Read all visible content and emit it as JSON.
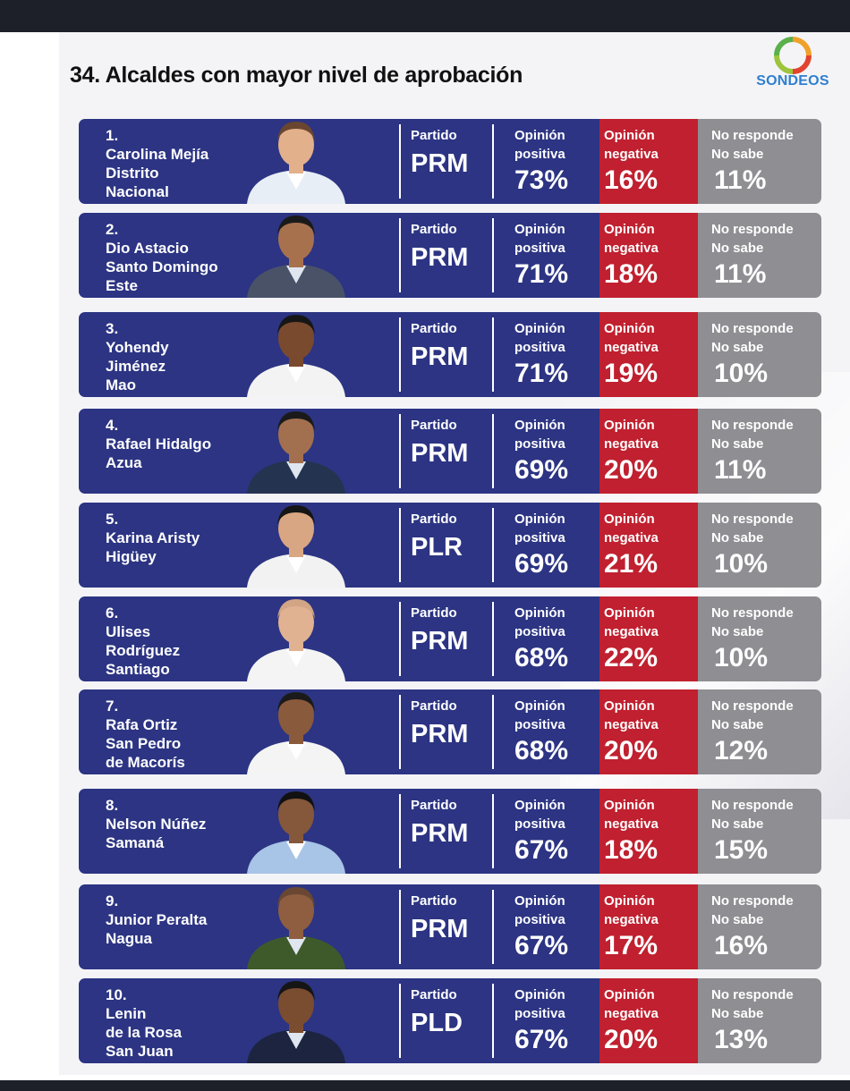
{
  "title": "34. Alcaldes con mayor nivel de aprobación",
  "logo_text": "SONDEOS",
  "labels": {
    "party": "Partido",
    "positive_line1": "Opinión",
    "positive_line2": "positiva",
    "negative_line1": "Opinión",
    "negative_line2": "negativa",
    "noanswer_line1": "No responde",
    "noanswer_line2": "No sabe"
  },
  "colors": {
    "row_blue": "#2c3483",
    "negative_red": "#c0202f",
    "noanswer_gray": "#8e8e93",
    "logo_blue": "#2f7fd0"
  },
  "chart_data": {
    "type": "table",
    "title": "34. Alcaldes con mayor nivel de aprobación",
    "columns": [
      "Partido",
      "Opinión positiva",
      "Opinión negativa",
      "No responde No sabe"
    ],
    "rows": [
      {
        "rank": "1.",
        "name_lines": [
          "Carolina Mejía",
          "Distrito",
          "Nacional"
        ],
        "party": "PRM",
        "positive": "73%",
        "negative": "16%",
        "no_answer": "11%",
        "suit": "light",
        "hair": "#6a4630",
        "skin": "#e3b08c"
      },
      {
        "rank": "2.",
        "name_lines": [
          "Dio Astacio",
          "Santo Domingo",
          "Este"
        ],
        "party": "PRM",
        "positive": "71%",
        "negative": "18%",
        "no_answer": "11%",
        "suit": "#4a5268",
        "hair": "#1a1a1a",
        "skin": "#a8714e"
      },
      {
        "rank": "3.",
        "name_lines": [
          "Yohendy",
          "Jiménez",
          "Mao"
        ],
        "party": "PRM",
        "positive": "71%",
        "negative": "19%",
        "no_answer": "10%",
        "suit": "#f3f3f3",
        "hair": "#161616",
        "skin": "#7a4a2e"
      },
      {
        "rank": "4.",
        "name_lines": [
          "Rafael Hidalgo",
          "Azua"
        ],
        "party": "PRM",
        "positive": "69%",
        "negative": "20%",
        "no_answer": "11%",
        "suit": "#243450",
        "hair": "#1a1a1a",
        "skin": "#a3704f"
      },
      {
        "rank": "5.",
        "name_lines": [
          "Karina Aristy",
          "Higüey"
        ],
        "party": "PLR",
        "positive": "69%",
        "negative": "21%",
        "no_answer": "10%",
        "suit": "#f2f2f2",
        "hair": "#151515",
        "skin": "#d9a683"
      },
      {
        "rank": "6.",
        "name_lines": [
          "Ulises",
          "Rodríguez",
          "Santiago"
        ],
        "party": "PRM",
        "positive": "68%",
        "negative": "22%",
        "no_answer": "10%",
        "suit": "#f4f4f4",
        "hair": "#d2a585",
        "skin": "#e0b291"
      },
      {
        "rank": "7.",
        "name_lines": [
          "Rafa Ortiz",
          "San Pedro",
          "de Macorís"
        ],
        "party": "PRM",
        "positive": "68%",
        "negative": "20%",
        "no_answer": "12%",
        "suit": "#f4f4f4",
        "hair": "#1a1a1a",
        "skin": "#8a5a3c"
      },
      {
        "rank": "8.",
        "name_lines": [
          "Nelson Núñez",
          "Samaná"
        ],
        "party": "PRM",
        "positive": "67%",
        "negative": "18%",
        "no_answer": "15%",
        "suit": "#a8c4e6",
        "hair": "#111111",
        "skin": "#85573b"
      },
      {
        "rank": "9.",
        "name_lines": [
          "Junior Peralta",
          "Nagua"
        ],
        "party": "PRM",
        "positive": "67%",
        "negative": "17%",
        "no_answer": "16%",
        "suit": "#3f5a2a",
        "hair": "#6a4733",
        "skin": "#8f5e40"
      },
      {
        "rank": "10.",
        "name_lines": [
          "Lenin",
          "de la Rosa",
          "San Juan"
        ],
        "party": "PLD",
        "positive": "67%",
        "negative": "20%",
        "no_answer": "13%",
        "suit": "#1c2440",
        "hair": "#151515",
        "skin": "#7a4c30"
      }
    ]
  }
}
